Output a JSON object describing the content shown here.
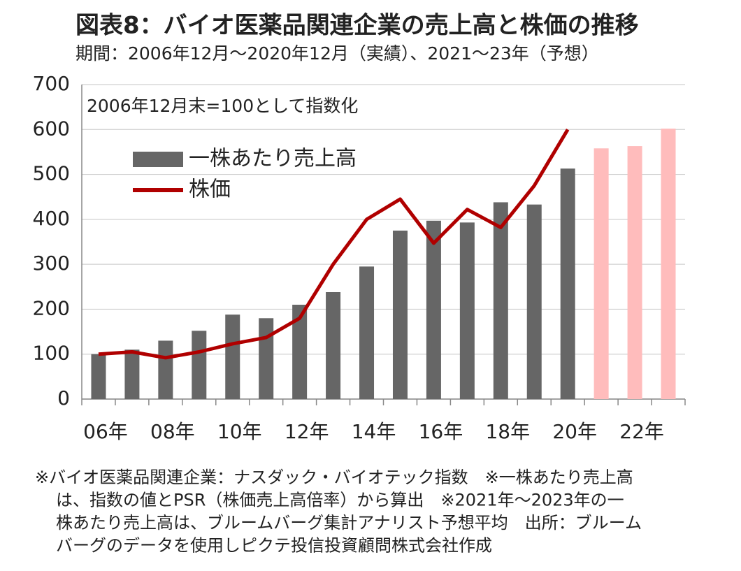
{
  "chart_data": {
    "type": "bar-line",
    "title": "図表8：バイオ医薬品関連企業の売上高と株価の推移",
    "subtitle": "期間：2006年12月～2020年12月（実績）、2021～23年（予想）",
    "annotation": "2006年12月末=100として指数化",
    "categories": [
      "06年",
      null,
      "08年",
      null,
      "10年",
      null,
      "12年",
      null,
      "14年",
      null,
      "16年",
      null,
      "18年",
      null,
      "20年",
      null,
      "22年",
      null
    ],
    "series": [
      {
        "name": "一株あたり売上高",
        "kind": "bar",
        "color": "#666666",
        "colors": [
          "#666666",
          "#666666",
          "#666666",
          "#666666",
          "#666666",
          "#666666",
          "#666666",
          "#666666",
          "#666666",
          "#666666",
          "#666666",
          "#666666",
          "#666666",
          "#666666",
          "#666666",
          "#ffbcbc",
          "#ffbcbc",
          "#ffbcbc"
        ],
        "values": [
          100,
          110,
          130,
          152,
          188,
          180,
          210,
          238,
          295,
          375,
          397,
          393,
          438,
          433,
          513,
          558,
          563,
          602
        ]
      },
      {
        "name": "株価",
        "kind": "line",
        "color": "#b00000",
        "values": [
          100,
          105,
          92,
          105,
          123,
          137,
          180,
          300,
          400,
          445,
          347,
          422,
          382,
          475,
          600,
          null,
          null,
          null
        ]
      }
    ],
    "ylim": [
      0,
      700
    ],
    "yticks": [
      0,
      100,
      200,
      300,
      400,
      500,
      600,
      700
    ],
    "grid": true,
    "footnote": [
      "※バイオ医薬品関連企業：ナスダック・バイオテック指数　※一株あたり売上高",
      "は、指数の値とPSR（株価売上高倍率）から算出　※2021年～2023年の一",
      "株あたり売上高は、ブルームバーグ集計アナリスト予想平均　出所：ブルーム",
      "バーグのデータを使用しピクテ投信投資顧問株式会社作成"
    ]
  }
}
